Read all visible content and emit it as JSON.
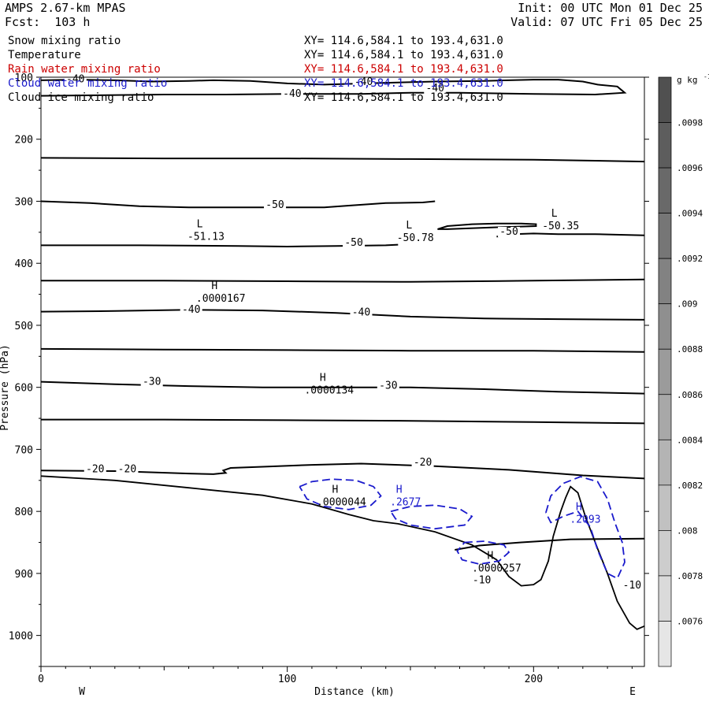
{
  "header": {
    "model": "AMPS 2.67-km MPAS",
    "forecast": "Fcst:  103 h",
    "init": "Init: 00 UTC Mon 01 Dec 25",
    "valid": "Valid: 07 UTC Fri 05 Dec 25"
  },
  "fields": [
    {
      "name": "Snow mixing ratio",
      "xy": "XY= 114.6,584.1 to 193.4,631.0",
      "color": "#000000"
    },
    {
      "name": "Temperature",
      "xy": "XY= 114.6,584.1 to 193.4,631.0",
      "color": "#000000"
    },
    {
      "name": "Rain water mixing ratio",
      "xy": "XY= 114.6,584.1 to 193.4,631.0",
      "color": "#cc0000"
    },
    {
      "name": "Cloud water mixing ratio",
      "xy": "XY= 114.6,584.1 to 193.4,631.0",
      "color": "#1a1acc"
    },
    {
      "name": "Cloud ice mixing ratio",
      "xy": "XY= 114.6,584.1 to 193.4,631.0",
      "color": "#000000"
    }
  ],
  "chart_data": {
    "type": "cross-section contour",
    "xlabel": "Distance (km)",
    "ylabel": "Pressure (hPa)",
    "x_ticks": [
      0,
      100,
      200
    ],
    "x_range": [
      0,
      245
    ],
    "y_ticks": [
      100,
      200,
      300,
      400,
      500,
      600,
      700,
      800,
      900,
      1000
    ],
    "y_range": [
      100,
      1050
    ],
    "endpoints": {
      "left": "W",
      "right": "E"
    },
    "colorbar": {
      "unit": "g kg",
      "unit_exp": "-1",
      "labels": [
        ".0098",
        ".0096",
        ".0094",
        ".0092",
        ".009",
        ".0088",
        ".0086",
        ".0084",
        ".0082",
        ".008",
        ".0078",
        ".0076"
      ]
    },
    "temperature_contours": [
      {
        "name": "isotherm-minus40-top",
        "points": [
          [
            0,
            105
          ],
          [
            15,
            104
          ],
          [
            30,
            105
          ],
          [
            45,
            107
          ],
          [
            60,
            106
          ],
          [
            70,
            105
          ],
          [
            85,
            106
          ],
          [
            100,
            110
          ],
          [
            115,
            112
          ],
          [
            140,
            109
          ],
          [
            160,
            107
          ],
          [
            180,
            106
          ],
          [
            200,
            104
          ],
          [
            210,
            104
          ],
          [
            220,
            107
          ],
          [
            226,
            112
          ],
          [
            234,
            115
          ],
          [
            237,
            125
          ],
          [
            225,
            128
          ],
          [
            200,
            127
          ],
          [
            170,
            125
          ],
          [
            150,
            125
          ],
          [
            130,
            127
          ],
          [
            100,
            127
          ],
          [
            75,
            128
          ],
          [
            50,
            128
          ],
          [
            0,
            130
          ]
        ]
      },
      {
        "name": "isotherm-230",
        "points": [
          [
            0,
            230
          ],
          [
            50,
            231
          ],
          [
            100,
            231
          ],
          [
            150,
            232
          ],
          [
            200,
            233
          ],
          [
            245,
            236
          ]
        ]
      },
      {
        "name": "isotherm-minus50-upper",
        "points": [
          [
            0,
            300
          ],
          [
            20,
            303
          ],
          [
            40,
            308
          ],
          [
            60,
            310
          ],
          [
            80,
            310
          ],
          [
            100,
            310
          ],
          [
            115,
            310
          ],
          [
            125,
            307
          ],
          [
            140,
            303
          ],
          [
            155,
            302
          ],
          [
            160,
            300
          ]
        ]
      },
      {
        "name": "isotherm-minus50-cell",
        "points": [
          [
            161,
            345
          ],
          [
            165,
            340
          ],
          [
            175,
            337
          ],
          [
            185,
            336
          ],
          [
            195,
            336
          ],
          [
            201,
            337
          ],
          [
            201,
            340
          ],
          [
            185,
            342
          ],
          [
            165,
            345
          ],
          [
            161,
            345
          ]
        ]
      },
      {
        "name": "isotherm-minus50-right",
        "points": [
          [
            185,
            357
          ],
          [
            192,
            353
          ],
          [
            200,
            352
          ],
          [
            210,
            353
          ],
          [
            225,
            353
          ],
          [
            235,
            354
          ],
          [
            245,
            355
          ]
        ]
      },
      {
        "name": "isotherm-minus50-lower",
        "points": [
          [
            0,
            371
          ],
          [
            40,
            371
          ],
          [
            80,
            372
          ],
          [
            100,
            373
          ],
          [
            120,
            372
          ],
          [
            140,
            371
          ],
          [
            145,
            370
          ]
        ]
      },
      {
        "name": "isotherm-430",
        "points": [
          [
            0,
            428
          ],
          [
            50,
            428
          ],
          [
            100,
            429
          ],
          [
            150,
            430
          ],
          [
            200,
            428
          ],
          [
            245,
            426
          ]
        ]
      },
      {
        "name": "isotherm-minus40-mid",
        "points": [
          [
            0,
            478
          ],
          [
            30,
            477
          ],
          [
            60,
            475
          ],
          [
            90,
            476
          ],
          [
            120,
            480
          ],
          [
            150,
            486
          ],
          [
            180,
            489
          ],
          [
            210,
            490
          ],
          [
            245,
            491
          ]
        ]
      },
      {
        "name": "isotherm-538",
        "points": [
          [
            0,
            538
          ],
          [
            50,
            539
          ],
          [
            100,
            540
          ],
          [
            150,
            541
          ],
          [
            200,
            541
          ],
          [
            245,
            543
          ]
        ]
      },
      {
        "name": "isotherm-minus30",
        "points": [
          [
            0,
            591
          ],
          [
            30,
            595
          ],
          [
            60,
            598
          ],
          [
            90,
            600
          ],
          [
            120,
            600
          ],
          [
            150,
            600
          ],
          [
            180,
            603
          ],
          [
            210,
            607
          ],
          [
            245,
            610
          ]
        ]
      },
      {
        "name": "isotherm-650",
        "points": [
          [
            0,
            652
          ],
          [
            50,
            652
          ],
          [
            100,
            653
          ],
          [
            150,
            654
          ],
          [
            200,
            656
          ],
          [
            245,
            658
          ]
        ]
      },
      {
        "name": "isotherm-minus20",
        "points": [
          [
            0,
            734
          ],
          [
            30,
            735
          ],
          [
            60,
            739
          ],
          [
            70,
            740
          ],
          [
            75,
            738
          ],
          [
            74,
            734
          ],
          [
            77,
            730
          ],
          [
            90,
            728
          ],
          [
            110,
            725
          ],
          [
            130,
            723
          ],
          [
            160,
            727
          ],
          [
            190,
            733
          ],
          [
            220,
            742
          ],
          [
            245,
            747
          ]
        ]
      },
      {
        "name": "isotherm-minus10",
        "points": [
          [
            168,
            862
          ],
          [
            178,
            855
          ],
          [
            195,
            850
          ],
          [
            215,
            845
          ],
          [
            245,
            844
          ]
        ]
      }
    ],
    "terrain": {
      "points": [
        [
          0,
          743
        ],
        [
          30,
          750
        ],
        [
          60,
          762
        ],
        [
          90,
          774
        ],
        [
          110,
          788
        ],
        [
          125,
          805
        ],
        [
          135,
          815
        ],
        [
          145,
          820
        ],
        [
          160,
          833
        ],
        [
          175,
          854
        ],
        [
          185,
          878
        ],
        [
          190,
          905
        ],
        [
          195,
          920
        ],
        [
          200,
          918
        ],
        [
          203,
          910
        ],
        [
          206,
          880
        ],
        [
          208,
          840
        ],
        [
          211,
          800
        ],
        [
          213,
          778
        ],
        [
          215,
          760
        ],
        [
          218,
          770
        ],
        [
          221,
          808
        ],
        [
          226,
          860
        ],
        [
          230,
          900
        ],
        [
          234,
          945
        ],
        [
          239,
          980
        ],
        [
          242,
          990
        ],
        [
          245,
          985
        ]
      ]
    },
    "cloud_water_contours": [
      {
        "name": "cloud-water-cell-1",
        "points": [
          [
            105,
            760
          ],
          [
            110,
            752
          ],
          [
            118,
            748
          ],
          [
            128,
            750
          ],
          [
            135,
            760
          ],
          [
            138,
            775
          ],
          [
            134,
            790
          ],
          [
            125,
            797
          ],
          [
            115,
            792
          ],
          [
            108,
            780
          ],
          [
            105,
            760
          ]
        ]
      },
      {
        "name": "cloud-water-cell-2",
        "points": [
          [
            142,
            800
          ],
          [
            150,
            792
          ],
          [
            160,
            790
          ],
          [
            170,
            796
          ],
          [
            175,
            808
          ],
          [
            172,
            822
          ],
          [
            160,
            828
          ],
          [
            150,
            822
          ],
          [
            144,
            812
          ],
          [
            142,
            800
          ]
        ]
      },
      {
        "name": "cloud-water-cell-3",
        "points": [
          [
            172,
            850
          ],
          [
            180,
            848
          ],
          [
            188,
            854
          ],
          [
            190,
            866
          ],
          [
            186,
            880
          ],
          [
            178,
            885
          ],
          [
            171,
            878
          ],
          [
            169,
            864
          ],
          [
            172,
            850
          ]
        ]
      },
      {
        "name": "cloud-water-cell-4",
        "points": [
          [
            205,
            802
          ],
          [
            207,
            775
          ],
          [
            212,
            755
          ],
          [
            219,
            744
          ],
          [
            226,
            752
          ],
          [
            230,
            780
          ],
          [
            233,
            818
          ],
          [
            236,
            850
          ],
          [
            237,
            882
          ],
          [
            234,
            908
          ],
          [
            230,
            900
          ],
          [
            226,
            862
          ],
          [
            223,
            825
          ],
          [
            218,
            800
          ],
          [
            212,
            808
          ],
          [
            207,
            818
          ],
          [
            205,
            802
          ]
        ]
      }
    ],
    "contour_labels": [
      {
        "text": "-40",
        "x": 14,
        "p": 108,
        "color": "#000000"
      },
      {
        "text": "-40",
        "x": 131,
        "p": 113,
        "color": "#000000"
      },
      {
        "text": "-40",
        "x": 160,
        "p": 123,
        "color": "#000000"
      },
      {
        "text": "-40",
        "x": 102,
        "p": 132,
        "color": "#000000"
      },
      {
        "text": "-50",
        "x": 95,
        "p": 311,
        "color": "#000000"
      },
      {
        "text": "-50",
        "x": 127,
        "p": 372,
        "color": "#000000"
      },
      {
        "text": "-50",
        "x": 190,
        "p": 354,
        "color": "#000000"
      },
      {
        "text": "-40",
        "x": 61,
        "p": 480,
        "color": "#000000"
      },
      {
        "text": "-40",
        "x": 130,
        "p": 484,
        "color": "#000000"
      },
      {
        "text": "-30",
        "x": 45,
        "p": 596,
        "color": "#000000"
      },
      {
        "text": "-30",
        "x": 141,
        "p": 602,
        "color": "#000000"
      },
      {
        "text": "-20",
        "x": 22,
        "p": 737,
        "color": "#000000"
      },
      {
        "text": "-20",
        "x": 35,
        "p": 737,
        "color": "#000000"
      },
      {
        "text": "-20",
        "x": 155,
        "p": 726,
        "color": "#000000"
      },
      {
        "text": "-10",
        "x": 179,
        "p": 916,
        "color": "#000000"
      },
      {
        "text": "-10",
        "x": 240,
        "p": 924,
        "color": "#000000"
      }
    ],
    "extrema": [
      {
        "letter": "L",
        "value": "-51.13",
        "x": 67,
        "p": 362,
        "color": "#000000"
      },
      {
        "letter": "L",
        "value": "-50.78",
        "x": 152,
        "p": 364,
        "color": "#000000"
      },
      {
        "letter": "L",
        "value": "-50.35",
        "x": 211,
        "p": 345,
        "color": "#000000"
      },
      {
        "letter": "H",
        "value": ".0000167",
        "x": 73,
        "p": 462,
        "color": "#000000"
      },
      {
        "letter": "H",
        "value": ".0000134",
        "x": 117,
        "p": 610,
        "color": "#000000"
      },
      {
        "letter": "H",
        "value": ".0000044",
        "x": 122,
        "p": 790,
        "color": "#000000"
      },
      {
        "letter": "H",
        "value": ".2677",
        "x": 148,
        "p": 790,
        "color": "#1a1acc"
      },
      {
        "letter": "H",
        "value": ".0000257",
        "x": 185,
        "p": 897,
        "color": "#000000"
      },
      {
        "letter": "H",
        "value": ".2093",
        "x": 221,
        "p": 818,
        "color": "#1a1acc"
      }
    ]
  }
}
